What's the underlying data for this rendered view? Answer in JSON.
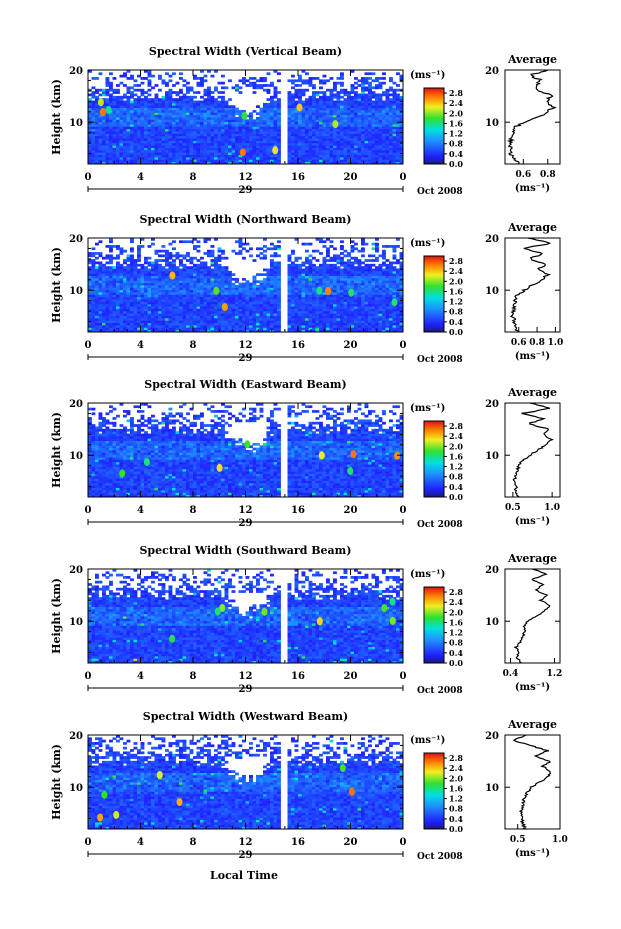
{
  "figure": {
    "xlabel": "Local Time",
    "date_label": "Oct 2008"
  },
  "chart_data": [
    {
      "type": "heatmap",
      "title": "Spectral Width (Vertical Beam)",
      "ylabel": "Height (km)",
      "xlabel": "Local Time",
      "x_ticks": [
        "0",
        "4",
        "8",
        "12",
        "16",
        "20",
        "0"
      ],
      "xlim": [
        0,
        24
      ],
      "day_label": "29",
      "y_ticks": [
        "10",
        "20"
      ],
      "ylim": [
        2,
        20
      ],
      "colorbar_unit": "(ms⁻¹)",
      "colorbar_ticks": [
        "0.0",
        "0.4",
        "0.8",
        "1.2",
        "1.6",
        "2.0",
        "2.4",
        "2.8"
      ],
      "colorbar_range": [
        0.0,
        3.0
      ],
      "average": {
        "title": "Average",
        "xlabel": "(ms⁻¹)",
        "x_ticks": [
          "0.6",
          "0.8"
        ],
        "xlim": [
          0.45,
          0.9
        ],
        "y_ticks": [
          "10",
          "20"
        ],
        "ylim": [
          2,
          20
        ],
        "height": [
          2,
          3,
          4,
          5,
          6,
          7,
          8,
          9,
          10,
          11,
          12,
          13,
          14,
          15,
          16,
          17,
          18,
          19,
          20
        ],
        "value": [
          0.56,
          0.53,
          0.49,
          0.5,
          0.49,
          0.5,
          0.51,
          0.52,
          0.62,
          0.72,
          0.8,
          0.85,
          0.78,
          0.83,
          0.74,
          0.7,
          0.75,
          0.65,
          0.8
        ]
      }
    },
    {
      "type": "heatmap",
      "title": "Spectral Width (Northward Beam)",
      "ylabel": "Height (km)",
      "xlabel": "Local Time",
      "x_ticks": [
        "0",
        "4",
        "8",
        "12",
        "16",
        "20",
        "0"
      ],
      "xlim": [
        0,
        24
      ],
      "day_label": "29",
      "y_ticks": [
        "10",
        "20"
      ],
      "ylim": [
        2,
        20
      ],
      "colorbar_unit": "(ms⁻¹)",
      "colorbar_ticks": [
        "0.0",
        "0.4",
        "0.8",
        "1.2",
        "1.6",
        "2.0",
        "2.4",
        "2.8"
      ],
      "colorbar_range": [
        0.0,
        3.0
      ],
      "average": {
        "title": "Average",
        "xlabel": "(ms⁻¹)",
        "x_ticks": [
          "0.6",
          "0.8",
          "1.0"
        ],
        "xlim": [
          0.45,
          1.05
        ],
        "y_ticks": [
          "10",
          "20"
        ],
        "ylim": [
          2,
          20
        ],
        "height": [
          2,
          3,
          4,
          5,
          6,
          7,
          8,
          9,
          10,
          11,
          12,
          13,
          14,
          15,
          16,
          17,
          18,
          19,
          20
        ],
        "value": [
          0.6,
          0.55,
          0.56,
          0.53,
          0.54,
          0.55,
          0.56,
          0.58,
          0.66,
          0.75,
          0.85,
          0.92,
          0.8,
          0.9,
          0.72,
          0.86,
          0.65,
          0.95,
          0.7
        ]
      }
    },
    {
      "type": "heatmap",
      "title": "Spectral Width (Eastward Beam)",
      "ylabel": "Height (km)",
      "xlabel": "Local Time",
      "x_ticks": [
        "0",
        "4",
        "8",
        "12",
        "16",
        "20",
        "0"
      ],
      "xlim": [
        0,
        24
      ],
      "day_label": "29",
      "y_ticks": [
        "10",
        "20"
      ],
      "ylim": [
        2,
        20
      ],
      "colorbar_unit": "(ms⁻¹)",
      "colorbar_ticks": [
        "0.0",
        "0.4",
        "0.8",
        "1.2",
        "1.6",
        "2.0",
        "2.4",
        "2.8"
      ],
      "colorbar_range": [
        0.0,
        3.0
      ],
      "average": {
        "title": "Average",
        "xlabel": "(ms⁻¹)",
        "x_ticks": [
          "0.5",
          "1.0"
        ],
        "xlim": [
          0.4,
          1.1
        ],
        "y_ticks": [
          "10",
          "20"
        ],
        "ylim": [
          2,
          20
        ],
        "height": [
          2,
          3,
          4,
          5,
          6,
          7,
          8,
          9,
          10,
          11,
          12,
          13,
          14,
          15,
          16,
          17,
          18,
          19,
          20
        ],
        "value": [
          0.58,
          0.52,
          0.55,
          0.52,
          0.53,
          0.55,
          0.58,
          0.62,
          0.72,
          0.82,
          0.92,
          1.0,
          0.88,
          0.95,
          0.7,
          0.88,
          0.62,
          0.98,
          0.72
        ]
      }
    },
    {
      "type": "heatmap",
      "title": "Spectral Width (Southward Beam)",
      "ylabel": "Height (km)",
      "xlabel": "Local Time",
      "x_ticks": [
        "0",
        "4",
        "8",
        "12",
        "16",
        "20",
        "0"
      ],
      "xlim": [
        0,
        24
      ],
      "day_label": "29",
      "y_ticks": [
        "10",
        "20"
      ],
      "ylim": [
        2,
        20
      ],
      "colorbar_unit": "(ms⁻¹)",
      "colorbar_ticks": [
        "0.0",
        "0.4",
        "0.8",
        "1.2",
        "1.6",
        "2.0",
        "2.4",
        "2.8"
      ],
      "colorbar_range": [
        0.0,
        3.0
      ],
      "average": {
        "title": "Average",
        "xlabel": "(ms⁻¹)",
        "x_ticks": [
          "0.4",
          "1.2"
        ],
        "xlim": [
          0.3,
          1.3
        ],
        "y_ticks": [
          "10",
          "20"
        ],
        "ylim": [
          2,
          20
        ],
        "height": [
          2,
          3,
          4,
          5,
          6,
          7,
          8,
          9,
          10,
          11,
          12,
          13,
          14,
          15,
          16,
          17,
          18,
          19,
          20
        ],
        "value": [
          0.6,
          0.52,
          0.55,
          0.5,
          0.58,
          0.62,
          0.66,
          0.64,
          0.72,
          0.88,
          1.02,
          1.12,
          0.95,
          1.05,
          0.85,
          1.0,
          0.78,
          1.05,
          0.8
        ]
      }
    },
    {
      "type": "heatmap",
      "title": "Spectral Width (Westward Beam)",
      "ylabel": "Height (km)",
      "xlabel": "Local Time",
      "x_ticks": [
        "0",
        "4",
        "8",
        "12",
        "16",
        "20",
        "0"
      ],
      "xlim": [
        0,
        24
      ],
      "day_label": "29",
      "y_ticks": [
        "10",
        "20"
      ],
      "ylim": [
        2,
        20
      ],
      "colorbar_unit": "(ms⁻¹)",
      "colorbar_ticks": [
        "0.0",
        "0.4",
        "0.8",
        "1.2",
        "1.6",
        "2.0",
        "2.4",
        "2.8"
      ],
      "colorbar_range": [
        0.0,
        3.0
      ],
      "average": {
        "title": "Average",
        "xlabel": "(ms⁻¹)",
        "x_ticks": [
          "0.5",
          "1.0"
        ],
        "xlim": [
          0.35,
          1.0
        ],
        "y_ticks": [
          "10",
          "20"
        ],
        "ylim": [
          2,
          20
        ],
        "height": [
          2,
          3,
          4,
          5,
          6,
          7,
          8,
          9,
          10,
          11,
          12,
          13,
          14,
          15,
          16,
          17,
          18,
          19,
          20
        ],
        "value": [
          0.6,
          0.56,
          0.55,
          0.54,
          0.56,
          0.56,
          0.58,
          0.62,
          0.66,
          0.76,
          0.85,
          0.9,
          0.8,
          0.88,
          0.7,
          0.85,
          0.65,
          0.45,
          0.6
        ]
      }
    }
  ]
}
